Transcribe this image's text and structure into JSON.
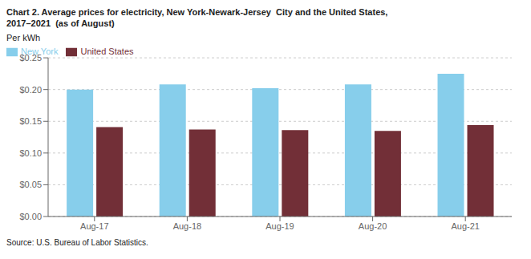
{
  "chart_data": {
    "type": "bar",
    "title": "Chart 2. Average prices for electricity, New York-Newark-Jersey  City and the United States,",
    "subtitle": "2017–2021  (as of August)",
    "y_label": "Per kWh",
    "source": "Source: U.S. Bureau of Labor Statistics.",
    "categories": [
      "Aug-17",
      "Aug-18",
      "Aug-19",
      "Aug-20",
      "Aug-21"
    ],
    "series": [
      {
        "name": "New York",
        "color": "#87CEEB",
        "values": [
          0.2,
          0.208,
          0.202,
          0.208,
          0.225
        ]
      },
      {
        "name": "United States",
        "color": "#722F37",
        "values": [
          0.141,
          0.137,
          0.136,
          0.135,
          0.144
        ]
      }
    ],
    "ylim": [
      0.0,
      0.25
    ],
    "yticks": [
      {
        "value": 0.0,
        "label": "$0.00"
      },
      {
        "value": 0.05,
        "label": "$0.05"
      },
      {
        "value": 0.1,
        "label": "$0.10"
      },
      {
        "value": 0.15,
        "label": "$0.15"
      },
      {
        "value": 0.2,
        "label": "$0.20"
      },
      {
        "value": 0.25,
        "label": "$0.25"
      }
    ],
    "grid": true,
    "legend": "upper left"
  }
}
